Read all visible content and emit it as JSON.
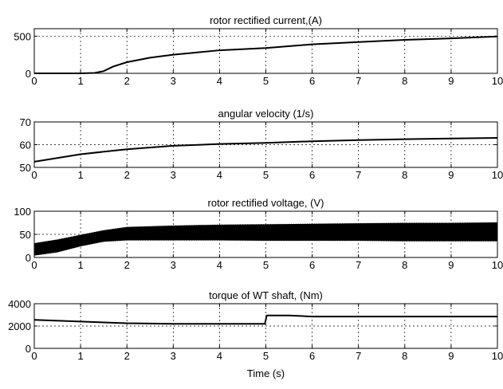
{
  "chart_data": [
    {
      "type": "line",
      "title": "rotor rectified current,(A)",
      "xlabel": "",
      "ylabel": "",
      "xlim": [
        0,
        10
      ],
      "ylim": [
        0,
        600
      ],
      "xticks": [
        0,
        1,
        2,
        3,
        4,
        5,
        6,
        7,
        8,
        9,
        10
      ],
      "yticks": [
        0,
        500
      ],
      "grid": true,
      "series": [
        {
          "x": [
            0,
            1,
            1.3,
            1.5,
            1.7,
            2,
            2.5,
            3,
            3.5,
            4,
            5,
            6,
            7,
            8,
            9,
            10
          ],
          "y": [
            0,
            0,
            5,
            30,
            90,
            150,
            210,
            250,
            280,
            310,
            340,
            390,
            420,
            450,
            470,
            495
          ]
        }
      ]
    },
    {
      "type": "line",
      "title": "angular velocity (1/s)",
      "xlabel": "",
      "ylabel": "",
      "xlim": [
        0,
        10
      ],
      "ylim": [
        50,
        70
      ],
      "xticks": [
        0,
        1,
        2,
        3,
        4,
        5,
        6,
        7,
        8,
        9,
        10
      ],
      "yticks": [
        50,
        60,
        70
      ],
      "grid": true,
      "series": [
        {
          "x": [
            0,
            1,
            2,
            3,
            4,
            5,
            6,
            7,
            8,
            9,
            10
          ],
          "y": [
            52.5,
            55.8,
            58,
            59.5,
            60.3,
            60.8,
            61.5,
            62,
            62.4,
            62.7,
            63
          ]
        }
      ]
    },
    {
      "type": "line",
      "title": "rotor rectified voltage, (V)",
      "xlabel": "",
      "ylabel": "",
      "xlim": [
        0,
        10
      ],
      "ylim": [
        0,
        100
      ],
      "xticks": [
        0,
        1,
        2,
        3,
        4,
        5,
        6,
        7,
        8,
        9,
        10
      ],
      "yticks": [
        0,
        50,
        100
      ],
      "grid": true,
      "series": [
        {
          "x": [
            0,
            0.5,
            1,
            1.5,
            2,
            3,
            4,
            5,
            6,
            7,
            8,
            9,
            10
          ],
          "y_upper": [
            30,
            38,
            48,
            58,
            65,
            68,
            70,
            71,
            72,
            73,
            74,
            74,
            75
          ],
          "y_lower": [
            5,
            12,
            25,
            35,
            38,
            38,
            38,
            37,
            37,
            37,
            36,
            36,
            36
          ]
        }
      ]
    },
    {
      "type": "line",
      "title": "torque of WT shaft, (Nm)",
      "xlabel": "Time (s)",
      "ylabel": "",
      "xlim": [
        0,
        10
      ],
      "ylim": [
        0,
        4000
      ],
      "xticks": [
        0,
        1,
        2,
        3,
        4,
        5,
        6,
        7,
        8,
        9,
        10
      ],
      "yticks": [
        0,
        2000,
        4000
      ],
      "grid": true,
      "series": [
        {
          "x": [
            0,
            1,
            2,
            3,
            4,
            4.98,
            5.02,
            5.5,
            6,
            7,
            8,
            9,
            10
          ],
          "y": [
            2550,
            2400,
            2250,
            2200,
            2200,
            2200,
            2950,
            2950,
            2850,
            2850,
            2850,
            2850,
            2850
          ]
        }
      ]
    }
  ]
}
